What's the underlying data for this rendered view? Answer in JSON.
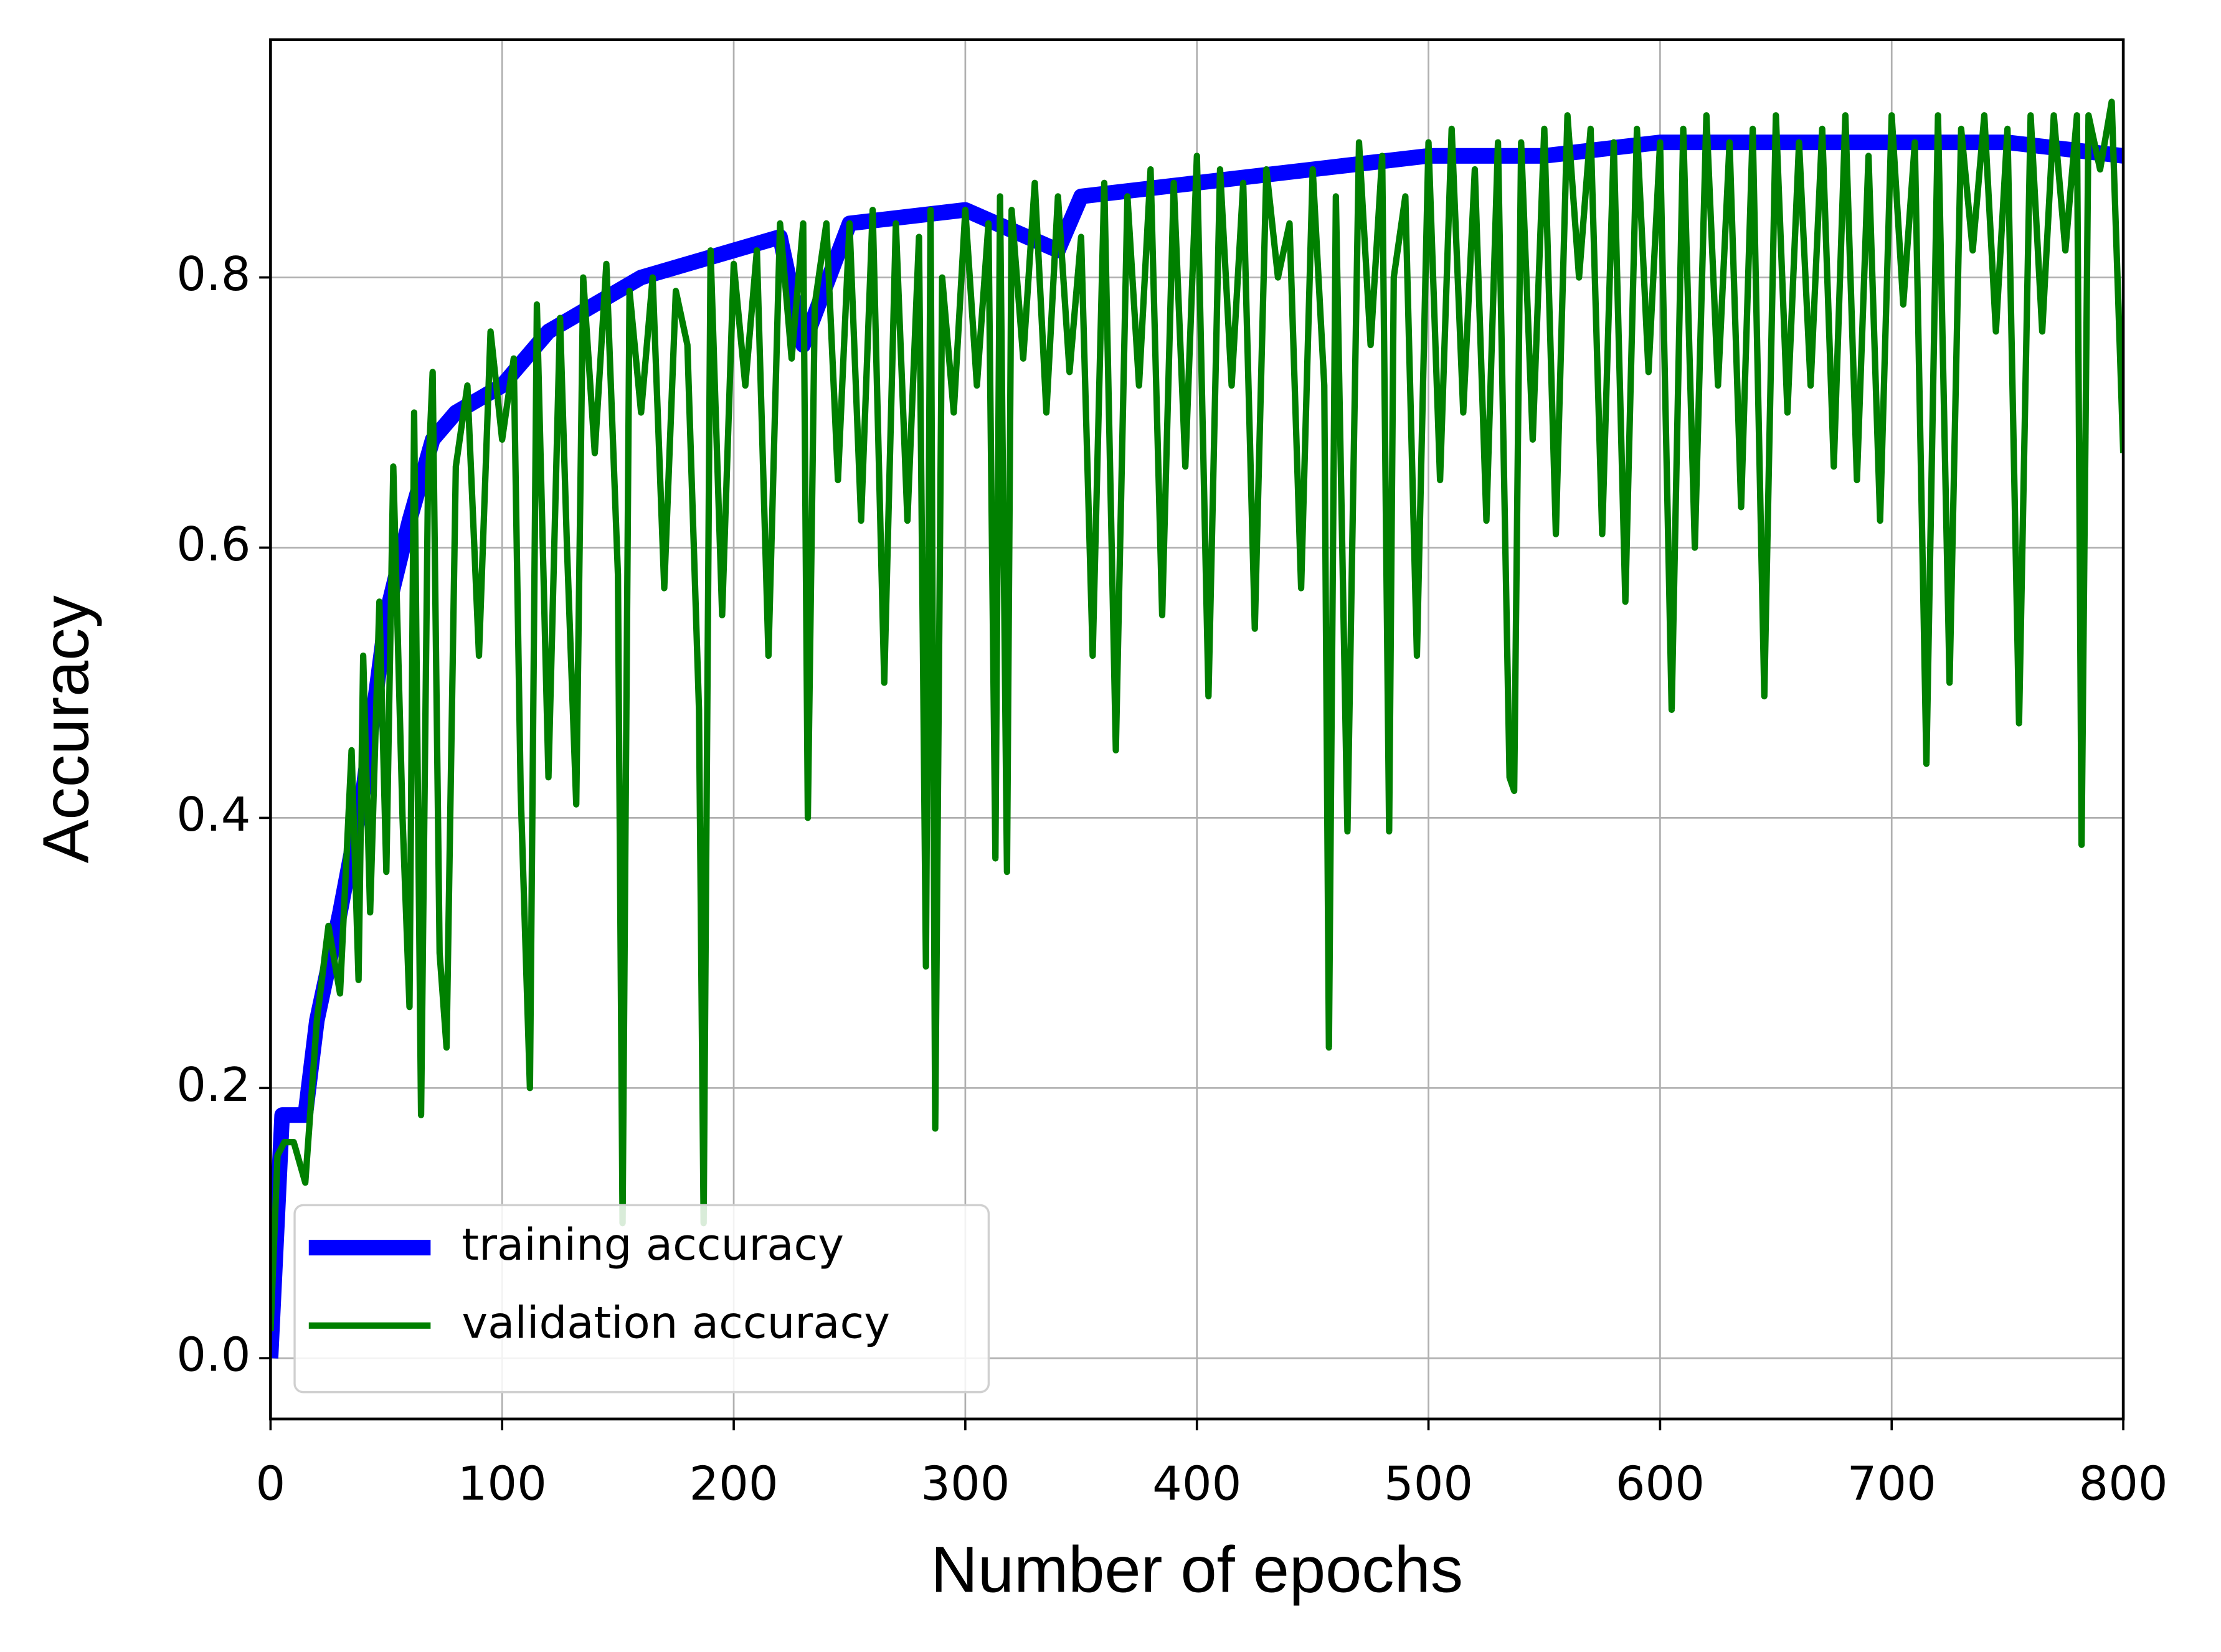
{
  "chart_data": {
    "type": "line",
    "xlabel": "Number of epochs",
    "ylabel": "Accuracy",
    "xlim": [
      0,
      800
    ],
    "ylim": [
      -0.045,
      0.976
    ],
    "xticks": [
      0,
      100,
      200,
      300,
      400,
      500,
      600,
      700,
      800
    ],
    "yticks": [
      {
        "value": 0,
        "label": "0.0"
      },
      0.2,
      0.4,
      0.6,
      0.8
    ],
    "grid": true,
    "legend": "lower left",
    "series": [
      {
        "name": "training accuracy",
        "color": "#0000ff",
        "x": [
          0,
          5,
          15,
          20,
          30,
          40,
          50,
          60,
          70,
          80,
          100,
          120,
          140,
          160,
          180,
          200,
          220,
          230,
          250,
          300,
          340,
          350,
          400,
          450,
          500,
          550,
          600,
          650,
          700,
          750,
          800
        ],
        "values": [
          0,
          0.18,
          0.18,
          0.25,
          0.33,
          0.42,
          0.55,
          0.62,
          0.68,
          0.7,
          0.72,
          0.76,
          0.78,
          0.8,
          0.81,
          0.82,
          0.83,
          0.75,
          0.84,
          0.85,
          0.82,
          0.86,
          0.87,
          0.88,
          0.89,
          0.89,
          0.9,
          0.9,
          0.9,
          0.9,
          0.89
        ]
      },
      {
        "name": "validation accuracy",
        "color": "#008000",
        "x": [
          0,
          3,
          6,
          10,
          15,
          20,
          25,
          30,
          35,
          38,
          40,
          43,
          47,
          50,
          53,
          57,
          60,
          62,
          65,
          68,
          70,
          73,
          76,
          80,
          85,
          90,
          95,
          100,
          105,
          108,
          112,
          115,
          120,
          125,
          128,
          132,
          135,
          140,
          145,
          150,
          152,
          155,
          160,
          165,
          170,
          175,
          180,
          185,
          187,
          190,
          195,
          200,
          205,
          210,
          215,
          220,
          225,
          230,
          232,
          235,
          240,
          245,
          250,
          255,
          260,
          265,
          270,
          275,
          280,
          283,
          285,
          287,
          290,
          295,
          300,
          305,
          310,
          313,
          315,
          318,
          320,
          325,
          330,
          335,
          340,
          345,
          350,
          355,
          360,
          365,
          370,
          375,
          380,
          385,
          390,
          395,
          400,
          405,
          410,
          415,
          420,
          425,
          430,
          435,
          440,
          445,
          450,
          455,
          457,
          460,
          465,
          470,
          475,
          480,
          483,
          485,
          490,
          495,
          500,
          505,
          510,
          515,
          520,
          525,
          530,
          535,
          537,
          540,
          545,
          550,
          555,
          560,
          565,
          570,
          575,
          580,
          585,
          590,
          595,
          600,
          605,
          610,
          615,
          620,
          625,
          630,
          635,
          640,
          645,
          650,
          655,
          660,
          665,
          670,
          675,
          680,
          685,
          690,
          695,
          700,
          705,
          710,
          715,
          720,
          725,
          730,
          735,
          740,
          745,
          750,
          755,
          760,
          765,
          770,
          775,
          780,
          782,
          785,
          790,
          795,
          800
        ],
        "values": [
          0.02,
          0.15,
          0.16,
          0.16,
          0.13,
          0.25,
          0.32,
          0.27,
          0.45,
          0.28,
          0.52,
          0.33,
          0.56,
          0.36,
          0.66,
          0.4,
          0.26,
          0.7,
          0.18,
          0.65,
          0.73,
          0.3,
          0.23,
          0.66,
          0.72,
          0.52,
          0.76,
          0.68,
          0.74,
          0.42,
          0.2,
          0.78,
          0.43,
          0.77,
          0.6,
          0.41,
          0.8,
          0.67,
          0.81,
          0.58,
          0.1,
          0.79,
          0.7,
          0.8,
          0.57,
          0.79,
          0.75,
          0.48,
          0.1,
          0.82,
          0.55,
          0.81,
          0.72,
          0.82,
          0.52,
          0.84,
          0.74,
          0.84,
          0.4,
          0.78,
          0.84,
          0.65,
          0.84,
          0.62,
          0.85,
          0.5,
          0.84,
          0.62,
          0.83,
          0.29,
          0.85,
          0.17,
          0.8,
          0.7,
          0.85,
          0.72,
          0.84,
          0.37,
          0.86,
          0.36,
          0.85,
          0.74,
          0.87,
          0.7,
          0.86,
          0.73,
          0.83,
          0.52,
          0.87,
          0.45,
          0.86,
          0.72,
          0.88,
          0.55,
          0.87,
          0.66,
          0.89,
          0.49,
          0.88,
          0.72,
          0.87,
          0.54,
          0.88,
          0.8,
          0.84,
          0.57,
          0.88,
          0.72,
          0.23,
          0.86,
          0.39,
          0.9,
          0.75,
          0.89,
          0.39,
          0.8,
          0.86,
          0.52,
          0.9,
          0.65,
          0.91,
          0.7,
          0.88,
          0.62,
          0.9,
          0.43,
          0.42,
          0.9,
          0.68,
          0.91,
          0.61,
          0.92,
          0.8,
          0.91,
          0.61,
          0.9,
          0.56,
          0.91,
          0.73,
          0.9,
          0.48,
          0.91,
          0.6,
          0.92,
          0.72,
          0.9,
          0.63,
          0.91,
          0.49,
          0.92,
          0.7,
          0.9,
          0.72,
          0.91,
          0.66,
          0.92,
          0.65,
          0.89,
          0.62,
          0.92,
          0.78,
          0.9,
          0.44,
          0.92,
          0.5,
          0.91,
          0.82,
          0.92,
          0.76,
          0.91,
          0.47,
          0.92,
          0.76,
          0.92,
          0.82,
          0.92,
          0.38,
          0.92,
          0.88,
          0.93,
          0.67
        ]
      }
    ]
  }
}
